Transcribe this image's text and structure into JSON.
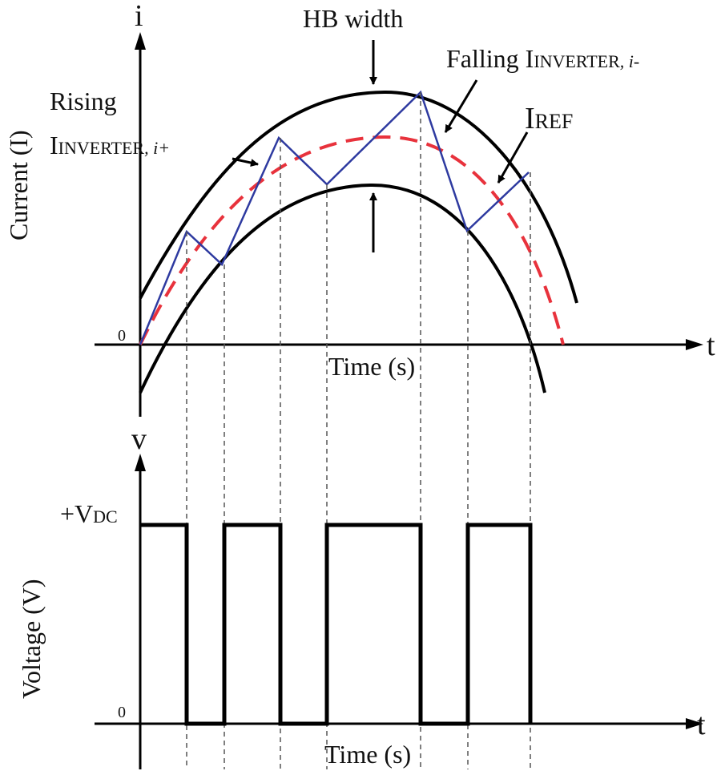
{
  "top_plot": {
    "y_axis_symbol": "i",
    "x_axis_symbol": "t",
    "y_axis_label": "Current (I)",
    "x_axis_label": "Time (s)",
    "origin_label": "0"
  },
  "bottom_plot": {
    "y_axis_symbol": "v",
    "x_axis_symbol": "t",
    "y_axis_label": "Voltage (V)",
    "x_axis_label": "Time (s)",
    "origin_label": "0",
    "vdc_label_prefix": "+V",
    "vdc_label_sub": "DC"
  },
  "annotations": {
    "hb_width": "HB width",
    "falling_prefix": "Falling I",
    "falling_sc": "INVERTER",
    "falling_suffix": ", i-",
    "rising_line1": "Rising",
    "rising_prefix": "I",
    "rising_sc": "INVERTER",
    "rising_suffix": ", i+",
    "iref_prefix": "I",
    "iref_sc": "REF"
  },
  "colors": {
    "band": "#000000",
    "reference": "#e8323c",
    "inverter_current": "#2e3aa0",
    "voltage": "#000000",
    "guides": "#555555"
  }
}
